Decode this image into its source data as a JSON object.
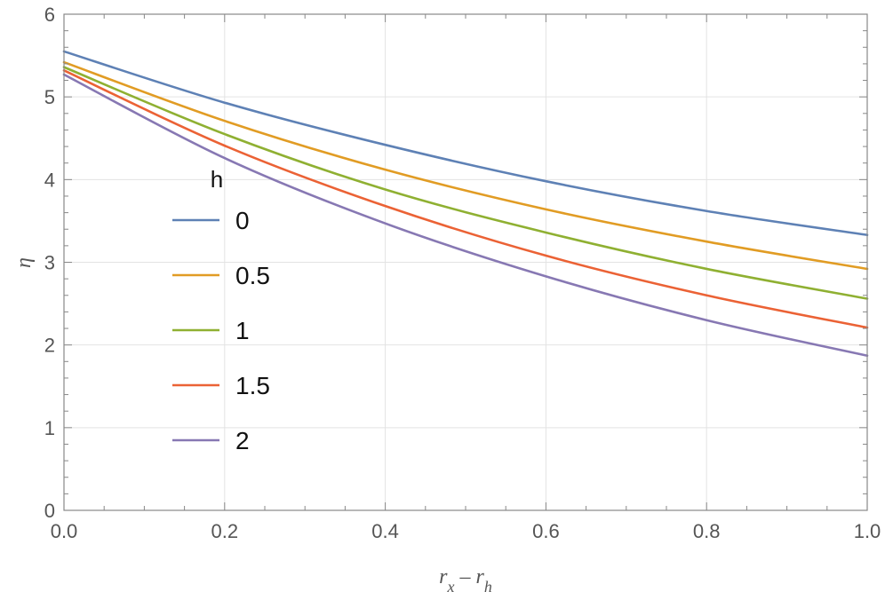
{
  "chart_data": {
    "type": "line",
    "title": "",
    "xlabel": "r_x − r_h",
    "ylabel": "η",
    "xlim": [
      0,
      1
    ],
    "ylim": [
      0,
      6
    ],
    "grid": true,
    "x_ticks": [
      "0.0",
      "0.2",
      "0.4",
      "0.6",
      "0.8",
      "1.0"
    ],
    "y_ticks": [
      "0",
      "1",
      "2",
      "3",
      "4",
      "5",
      "6"
    ],
    "legend": {
      "title": "h",
      "placement": "center-left"
    },
    "x": [
      0.0,
      0.2,
      0.4,
      0.6,
      0.8,
      1.0
    ],
    "series": [
      {
        "name": "0",
        "color": "#5E81B5",
        "values": [
          5.55,
          4.93,
          4.42,
          3.98,
          3.62,
          3.33
        ]
      },
      {
        "name": "0.5",
        "color": "#E19C24",
        "values": [
          5.42,
          4.71,
          4.12,
          3.64,
          3.25,
          2.92
        ]
      },
      {
        "name": "1",
        "color": "#8FB032",
        "values": [
          5.36,
          4.55,
          3.88,
          3.36,
          2.92,
          2.56
        ]
      },
      {
        "name": "1.5",
        "color": "#EB6235",
        "values": [
          5.32,
          4.41,
          3.68,
          3.08,
          2.6,
          2.21
        ]
      },
      {
        "name": "2",
        "color": "#8778B3",
        "values": [
          5.27,
          4.26,
          3.47,
          2.83,
          2.3,
          1.87
        ]
      }
    ]
  }
}
